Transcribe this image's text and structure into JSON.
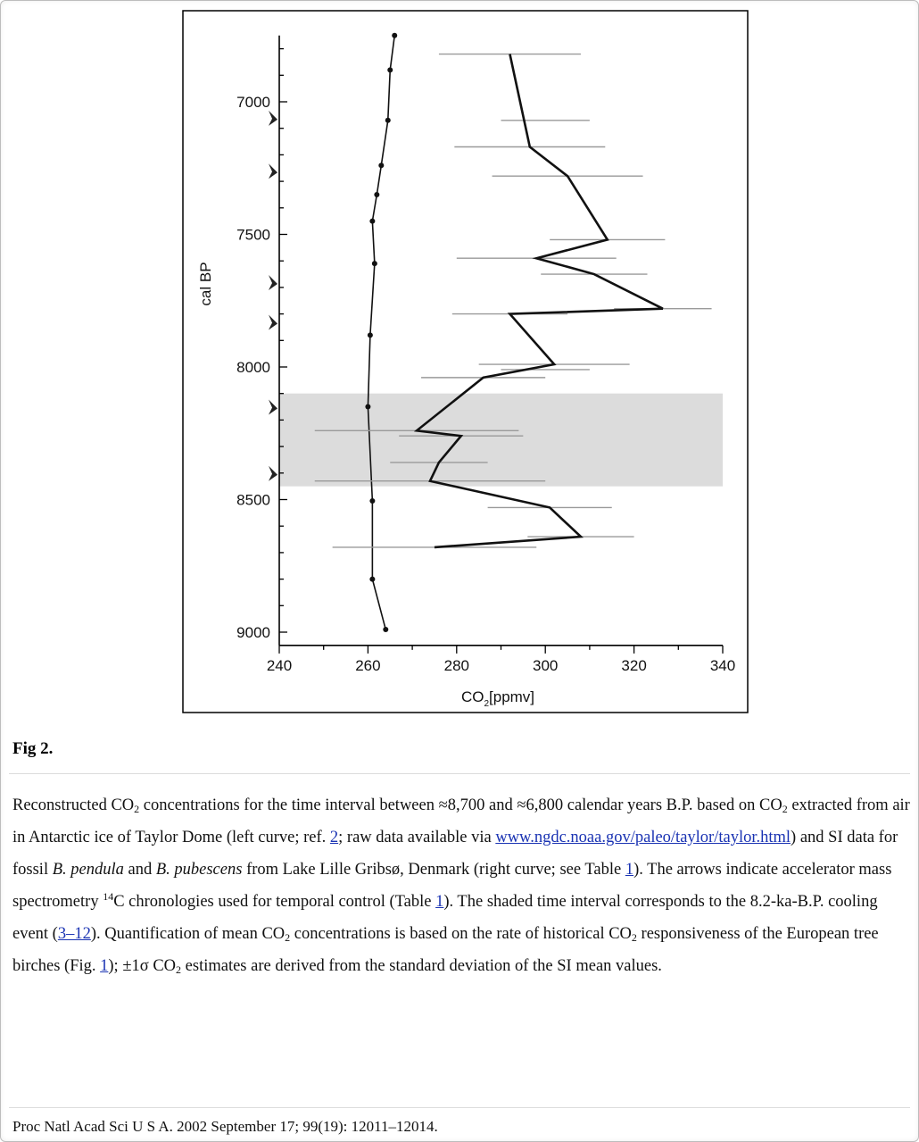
{
  "figure": {
    "label": "Fig 2.",
    "ylabel": "cal BP",
    "xlabel_pre": "CO",
    "xlabel_sub": "2",
    "xlabel_post": "[ppmv]"
  },
  "chart_data": {
    "type": "line",
    "x_range": [
      240,
      340
    ],
    "x_ticks": [
      240,
      260,
      280,
      300,
      320,
      340
    ],
    "y_range": [
      6750,
      9050
    ],
    "y_ticks": [
      7000,
      7500,
      8000,
      8500,
      9000
    ],
    "y_reversed": true,
    "shaded_interval": [
      8100,
      8450
    ],
    "arrow_markers_cal_bp": [
      7060,
      7260,
      7680,
      7830,
      8150,
      8400
    ],
    "series": [
      {
        "name": "left curve",
        "points": [
          {
            "x": 266,
            "y": 6750
          },
          {
            "x": 265,
            "y": 6880
          },
          {
            "x": 264.5,
            "y": 7070
          },
          {
            "x": 263,
            "y": 7240
          },
          {
            "x": 262,
            "y": 7350
          },
          {
            "x": 261,
            "y": 7450
          },
          {
            "x": 261.5,
            "y": 7610
          },
          {
            "x": 260.5,
            "y": 7880
          },
          {
            "x": 260,
            "y": 8150
          },
          {
            "x": 261,
            "y": 8505
          },
          {
            "x": 261,
            "y": 8800
          },
          {
            "x": 264,
            "y": 8990
          }
        ]
      },
      {
        "name": "right curve",
        "points": [
          {
            "x": 292,
            "y": 6820,
            "err": 16
          },
          {
            "x": 296.5,
            "y": 7170,
            "err": 17
          },
          {
            "x": 305,
            "y": 7280,
            "err": 17
          },
          {
            "x": 314,
            "y": 7520,
            "err": 13
          },
          {
            "x": 298,
            "y": 7590,
            "err": 18
          },
          {
            "x": 311,
            "y": 7650,
            "err": 12
          },
          {
            "x": 326.5,
            "y": 7780,
            "err": 11
          },
          {
            "x": 292,
            "y": 7800,
            "err": 13
          },
          {
            "x": 302,
            "y": 7990,
            "err": 17
          },
          {
            "x": 286,
            "y": 8040,
            "err": 14
          },
          {
            "x": 271,
            "y": 8240,
            "err": 23
          },
          {
            "x": 281,
            "y": 8260,
            "err": 14
          },
          {
            "x": 276,
            "y": 8360,
            "err": 11
          },
          {
            "x": 274,
            "y": 8430,
            "err": 26
          },
          {
            "x": 301,
            "y": 8530,
            "err": 14
          },
          {
            "x": 308,
            "y": 8640,
            "err": 12
          },
          {
            "x": 275,
            "y": 8680,
            "err": 23
          }
        ],
        "extra_bars": [
          {
            "x": 300,
            "y": 7070,
            "err": 10
          },
          {
            "x": 300,
            "y": 8010,
            "err": 10
          }
        ]
      }
    ]
  },
  "caption": {
    "p1": "Reconstructed CO",
    "p1_sub": "2",
    "p2": " concentrations for the time interval between ≈8,700 and ≈6,800 calendar years B.P. based on CO",
    "p2_sub": "2",
    "p3": " extracted from air in Antarctic ice of Taylor Dome (left curve; ref. ",
    "ref2": "2",
    "p4": "; raw data available via ",
    "url": "www.ngdc.noaa.gov/paleo/taylor/taylor.html",
    "p5": ") and SI data for fossil ",
    "italic1": "B. pendula",
    "p6": " and ",
    "italic2": "B. pubescens",
    "p7": " from Lake Lille Gribsø, Denmark (right curve; see Table ",
    "table1a": "1",
    "p8": "). The arrows indicate accelerator mass spectrometry ",
    "sup14": "14",
    "p9": "C chronologies used for temporal control (Table ",
    "table1b": "1",
    "p10": "). The shaded time interval corresponds to the 8.2-ka-B.P. cooling event (",
    "ref3_12": "3–12",
    "p11": "). Quantification of mean CO",
    "p11_sub": "2",
    "p12": " concentrations is based on the rate of historical CO",
    "p12_sub": "2",
    "p13": " responsiveness of the European tree birches (Fig. ",
    "fig1": "1",
    "p14": "); ±1σ CO",
    "p14_sub": "2",
    "p15": " estimates are derived from the standard deviation of the SI mean values."
  },
  "citation": "Proc Natl Acad Sci U S A. 2002 September 17; 99(19): 12011–12014."
}
